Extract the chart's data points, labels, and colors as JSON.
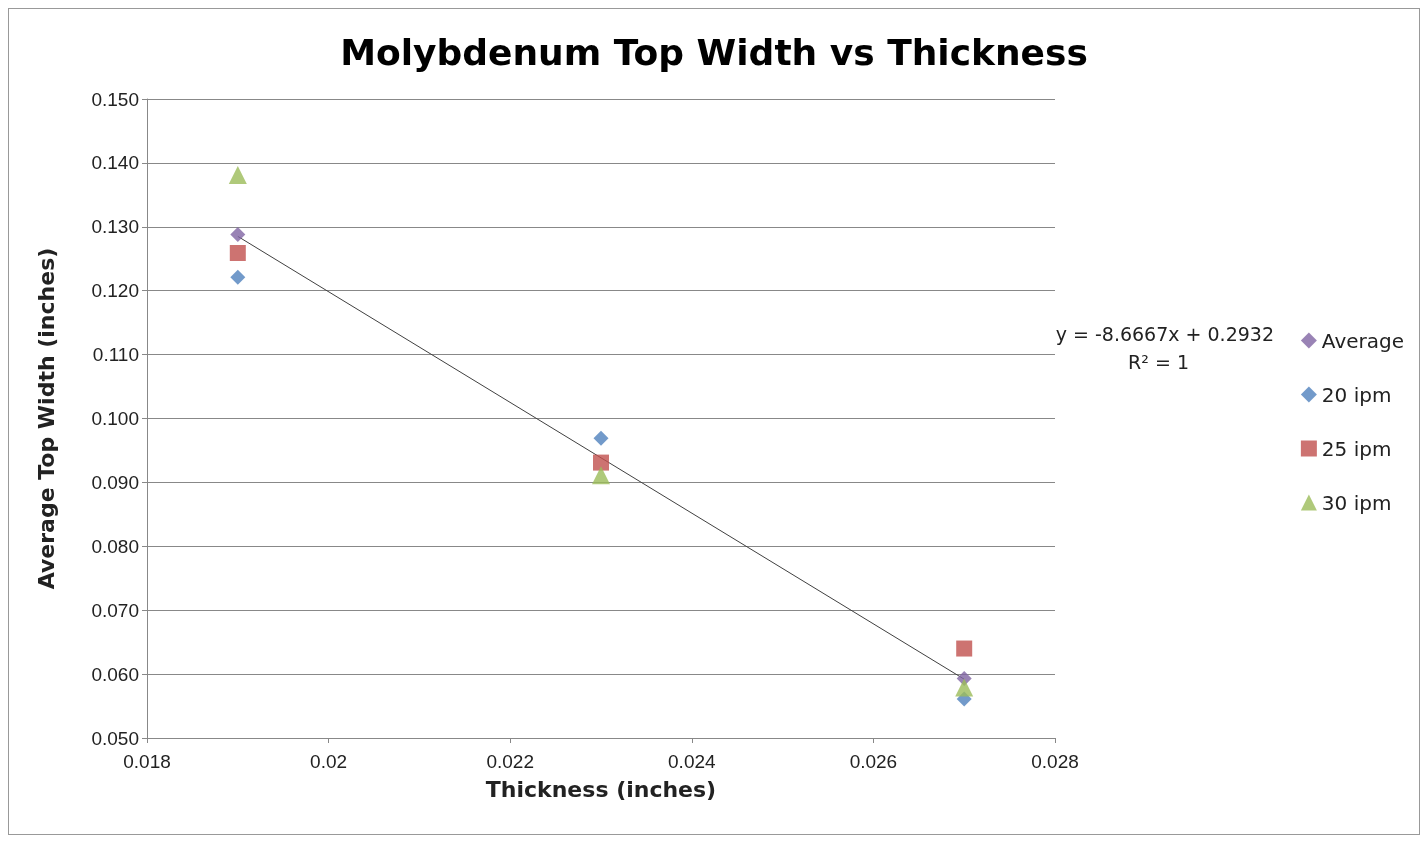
{
  "chart_data": {
    "type": "scatter",
    "title": "Molybdenum Top Width vs Thickness",
    "xlabel": "Thickness (inches)",
    "ylabel": "Average Top Width (inches)",
    "x": [
      0.019,
      0.023,
      0.027
    ],
    "series": [
      {
        "name": "Average",
        "color": "#8064a2",
        "marker": "diamond",
        "values": [
          0.1288,
          null,
          0.0593
        ]
      },
      {
        "name": "20 ipm",
        "color": "#4f81bd",
        "marker": "diamond",
        "values": [
          0.1221,
          0.0969,
          0.0561
        ]
      },
      {
        "name": "25 ipm",
        "color": "#c0504d",
        "marker": "square",
        "values": [
          0.1259,
          0.0931,
          0.064
        ]
      },
      {
        "name": "30 ipm",
        "color": "#9bbb59",
        "marker": "triangle",
        "values": [
          0.1381,
          0.0911,
          0.0579
        ]
      },
      {
        "type": "line",
        "color": "#404040",
        "marker": "none",
        "x": [
          0.019,
          0.027
        ],
        "values": [
          0.1285,
          0.0592
        ]
      }
    ],
    "xlim": [
      0.018,
      0.028
    ],
    "xticks": [
      0.018,
      0.02,
      0.022,
      0.024,
      0.026,
      0.028
    ],
    "ylim": [
      0.05,
      0.15
    ],
    "yticks": [
      {
        "value": 0.05,
        "label": "0.050"
      },
      {
        "value": 0.06,
        "label": "0.060"
      },
      {
        "value": 0.07,
        "label": "0.070"
      },
      {
        "value": 0.08,
        "label": "0.080"
      },
      {
        "value": 0.09,
        "label": "0.090"
      },
      {
        "value": 0.1,
        "label": "0.100"
      },
      {
        "value": 0.11,
        "label": "0.110"
      },
      {
        "value": 0.12,
        "label": "0.120"
      },
      {
        "value": 0.13,
        "label": "0.130"
      },
      {
        "value": 0.14,
        "label": "0.140"
      },
      {
        "value": 0.15,
        "label": "0.150"
      }
    ],
    "grid": "y",
    "legend": "right",
    "annotations": [
      "y = -8.6667x + 0.2932",
      "R² = 1"
    ]
  }
}
